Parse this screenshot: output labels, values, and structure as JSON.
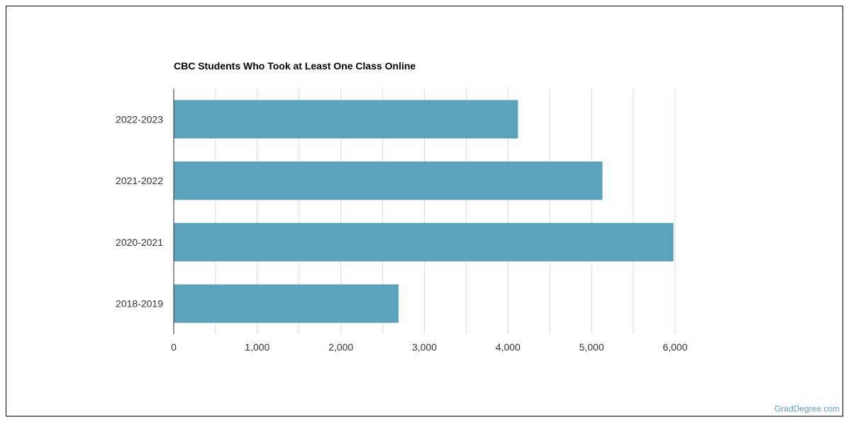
{
  "watermark": "GradDegree.com",
  "chart_data": {
    "type": "bar",
    "orientation": "horizontal",
    "title": "CBC Students Who Took at Least One Class Online",
    "xlabel": "",
    "ylabel": "",
    "categories": [
      "2022-2023",
      "2021-2022",
      "2020-2021",
      "2018-2019"
    ],
    "values": [
      4120,
      5130,
      5980,
      2690
    ],
    "xlim": [
      0,
      6000
    ],
    "xticks": [
      0,
      1000,
      2000,
      3000,
      4000,
      5000,
      6000
    ],
    "xtick_labels": [
      "0",
      "1,000",
      "2,000",
      "3,000",
      "4,000",
      "5,000",
      "6,000"
    ],
    "grid": true,
    "bar_color": "#5ba2bd",
    "gridline_color": "#d9d9d9"
  }
}
